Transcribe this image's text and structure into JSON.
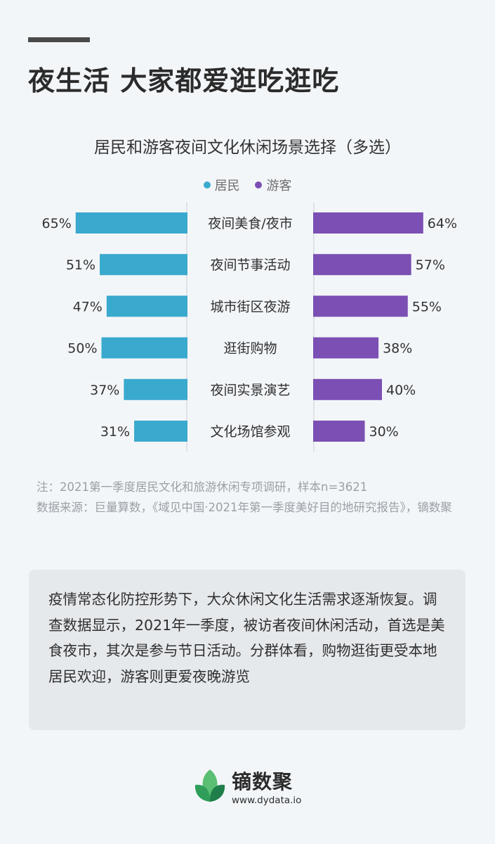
{
  "header": {
    "title": "夜生活 大家都爱逛吃逛吃"
  },
  "chart_data": {
    "type": "bar",
    "title": "居民和游客夜间文化休闲场景选择（多选）",
    "categories": [
      "夜间美食/夜市",
      "夜间节事活动",
      "城市街区夜游",
      "逛街购物",
      "夜间实景演艺",
      "文化场馆参观"
    ],
    "series": [
      {
        "name": "居民",
        "values": [
          65,
          51,
          47,
          50,
          37,
          31
        ],
        "color": "#3aa9ce"
      },
      {
        "name": "游客",
        "values": [
          64,
          57,
          55,
          38,
          40,
          30
        ],
        "color": "#7b4fb3"
      }
    ],
    "value_unit": "%",
    "xlabel": "",
    "ylabel": "",
    "legend": "top-center",
    "grid": false
  },
  "notes": {
    "line1": "注：2021第一季度居民文化和旅游休闲专项调研，样本n=3621",
    "line2": "数据来源：巨量算数，《域见中国·2021年第一季度美好目的地研究报告》，镝数聚"
  },
  "summary": {
    "text": "疫情常态化防控形势下，大众休闲文化生活需求逐渐恢复。调查数据显示，2021年一季度，被访者夜间休闲活动，首选是美食夜市，其次是参与节日活动。分群体看，购物逛街更受本地居民欢迎，游客则更爱夜晚游览"
  },
  "brand": {
    "name": "镝数聚",
    "url": "www.dydata.io",
    "logo_icon": "leaf-logo-icon"
  }
}
